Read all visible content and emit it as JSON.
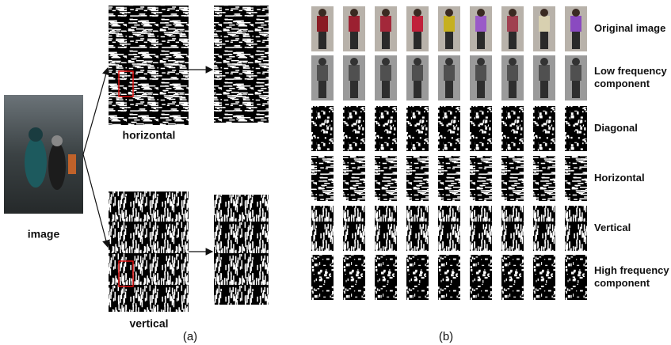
{
  "figure": {
    "panel_a": {
      "image_label": "image",
      "horizontal_label": "horizontal",
      "vertical_label": "vertical",
      "caption": "(a)"
    },
    "panel_b": {
      "row_labels": [
        [
          "Original image"
        ],
        [
          "Low frequency",
          "component"
        ],
        [
          "Diagonal"
        ],
        [
          "Horizontal"
        ],
        [
          "Vertical"
        ],
        [
          "High frequency",
          "component"
        ]
      ],
      "caption": "(b)"
    }
  }
}
